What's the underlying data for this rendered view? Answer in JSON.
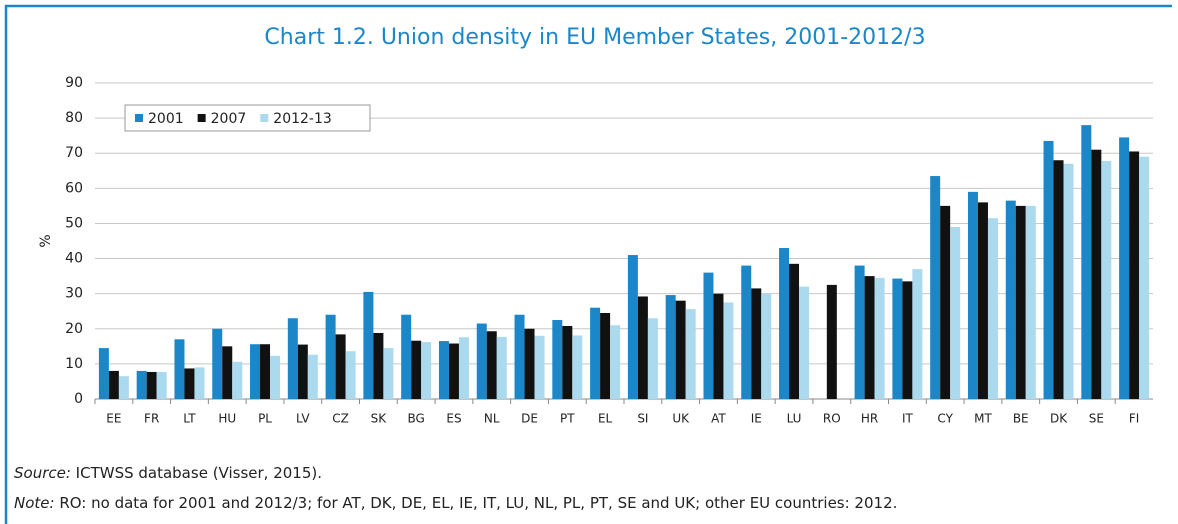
{
  "chart_data": {
    "type": "bar",
    "title": "Chart 1.2. Union density in EU Member States, 2001-2012/3",
    "y_label": "%",
    "categories": [
      "EE",
      "FR",
      "LT",
      "HU",
      "PL",
      "LV",
      "CZ",
      "SK",
      "BG",
      "ES",
      "NL",
      "DE",
      "PT",
      "EL",
      "SI",
      "UK",
      "AT",
      "IE",
      "LU",
      "RO",
      "HR",
      "IT",
      "CY",
      "MT",
      "BE",
      "DK",
      "SE",
      "FI"
    ],
    "series": [
      {
        "name": "2001",
        "color": "#1b87c9",
        "values": [
          14.5,
          8,
          17,
          20,
          15.6,
          23,
          24,
          30.5,
          24,
          16.5,
          21.5,
          24,
          22.5,
          26,
          41,
          29.6,
          36,
          38,
          43,
          null,
          38,
          34.3,
          63.5,
          59,
          56.5,
          73.5,
          78,
          74.5
        ]
      },
      {
        "name": "2007",
        "color": "#111111",
        "values": [
          8,
          7.7,
          8.7,
          15,
          15.6,
          15.5,
          18.4,
          18.8,
          16.6,
          15.8,
          19.3,
          20,
          20.8,
          24.5,
          29.2,
          28,
          30,
          31.5,
          38.5,
          32.5,
          35,
          33.5,
          55,
          56,
          55,
          68,
          71,
          70.5
        ]
      },
      {
        "name": "2012-13",
        "color": "#abd9ee",
        "values": [
          6.5,
          7.7,
          9,
          10.6,
          12.3,
          12.6,
          13.6,
          14.5,
          16.2,
          17.6,
          17.7,
          18,
          18.1,
          21,
          23,
          25.6,
          27.5,
          30,
          32,
          null,
          34.5,
          37,
          49,
          51.5,
          55,
          67,
          67.8,
          69
        ]
      }
    ],
    "ylim": [
      0,
      90
    ],
    "yticks": [
      0,
      10,
      20,
      30,
      40,
      50,
      60,
      70,
      80,
      90
    ],
    "grid": true,
    "legend": "top-left",
    "source_label": "Source:",
    "source": " ICTWSS database (Visser, 2015).",
    "note_label": "Note:",
    "note": " RO: no data for 2001 and 2012/3; for AT, DK, DE, EL, IE, IT, LU, NL, PL, PT, SE and UK; other EU countries: 2012."
  }
}
